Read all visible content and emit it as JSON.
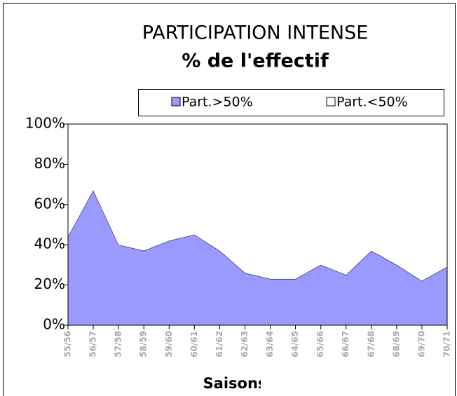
{
  "chart_data": {
    "type": "stacked_area",
    "title": "PARTICIPATION INTENSE",
    "subtitle": "% de l'effectif",
    "x_label": "Saisons",
    "categories": [
      "55/56",
      "56/57",
      "57/58",
      "58/59",
      "59/60",
      "60/61",
      "61/62",
      "62/63",
      "63/64",
      "64/65",
      "65/66",
      "66/67",
      "67/68",
      "68/69",
      "69/70",
      "70/71"
    ],
    "series": [
      {
        "name": "Part.>50%",
        "color": "#9999ff",
        "values": [
          44,
          67,
          40,
          37,
          42,
          45,
          37,
          26,
          23,
          23,
          30,
          25,
          37,
          30,
          22,
          29
        ]
      },
      {
        "name": "Part.<50%",
        "color": "#ffffff",
        "values": [
          56,
          33,
          60,
          63,
          58,
          55,
          63,
          74,
          77,
          77,
          70,
          75,
          63,
          70,
          78,
          71
        ]
      }
    ],
    "ylim": [
      0,
      100
    ],
    "yticks": [
      {
        "value": 0,
        "label": "0%"
      },
      {
        "value": 20,
        "label": "20%"
      },
      {
        "value": 40,
        "label": "40%"
      },
      {
        "value": 60,
        "label": "60%"
      },
      {
        "value": 80,
        "label": "80%"
      },
      {
        "value": 100,
        "label": "100%"
      }
    ],
    "legend": "top-right"
  }
}
